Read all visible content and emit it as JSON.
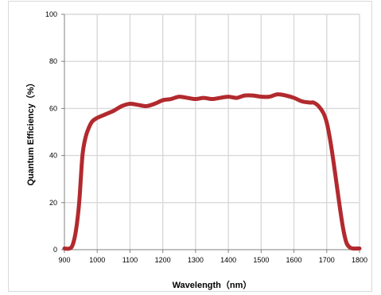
{
  "chart_data": {
    "type": "line",
    "title": "",
    "xlabel": "Wavelength（nm）",
    "ylabel": "Quantum Efficiency（%）",
    "xlim": [
      900,
      1800
    ],
    "ylim": [
      0,
      100
    ],
    "xticks": [
      900,
      1000,
      1100,
      1200,
      1300,
      1400,
      1500,
      1600,
      1700,
      1800
    ],
    "yticks": [
      0,
      20,
      40,
      60,
      80,
      100
    ],
    "grid": true,
    "legend": "none",
    "colors": {
      "line": "#b22a2e",
      "grid": "#d9d9d9",
      "axis": "#808080"
    },
    "series": [
      {
        "x": [
          900,
          915,
          925,
          935,
          945,
          955,
          965,
          975,
          985,
          1000,
          1025,
          1050,
          1075,
          1100,
          1125,
          1150,
          1175,
          1200,
          1225,
          1250,
          1275,
          1300,
          1325,
          1350,
          1375,
          1400,
          1425,
          1450,
          1475,
          1500,
          1525,
          1550,
          1575,
          1600,
          1625,
          1650,
          1660,
          1675,
          1690,
          1700,
          1710,
          1720,
          1730,
          1740,
          1750,
          1760,
          1770,
          1780,
          1800
        ],
        "y": [
          0.5,
          0.5,
          2,
          8,
          20,
          40,
          48,
          52,
          54.5,
          56,
          57.5,
          59,
          61,
          62,
          61.5,
          61,
          62,
          63.5,
          64,
          65,
          64.5,
          64,
          64.5,
          64,
          64.5,
          65,
          64.5,
          65.5,
          65.5,
          65,
          65,
          66,
          65.5,
          64.5,
          63,
          62.5,
          62.5,
          61,
          58,
          54,
          47,
          38,
          28,
          18,
          9,
          3,
          1,
          0.5,
          0.5
        ]
      }
    ]
  }
}
